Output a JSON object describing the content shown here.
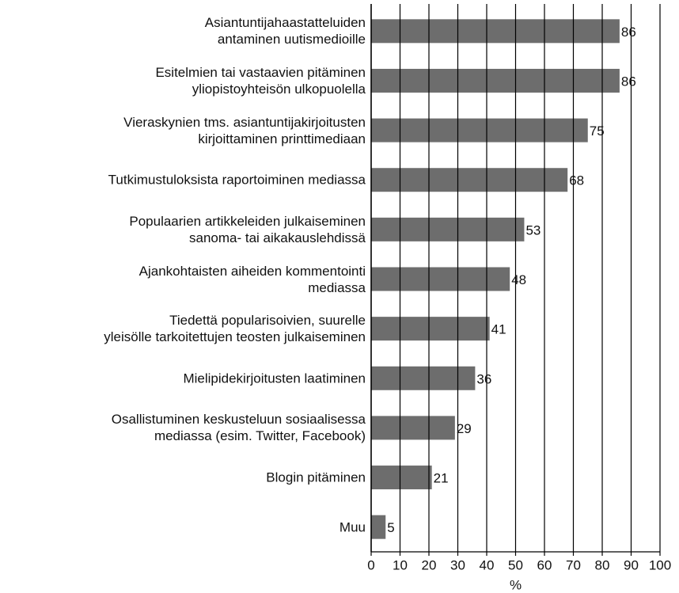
{
  "chart_data": {
    "type": "bar",
    "orientation": "horizontal",
    "categories": [
      "Asiantuntijahaastatteluiden\nantaminen uutismedioille",
      "Esitelmien tai vastaavien pitäminen\nyliopistoyhteisön ulkopuolella",
      "Vieraskynien tms. asiantuntijakirjoitusten\nkirjoittaminen printtimediaan",
      "Tutkimustuloksista raportoiminen mediassa",
      "Populaarien artikkeleiden julkaiseminen\nsanoma- tai aikakauslehdissä",
      "Ajankohtaisten aiheiden kommentointi\nmediassa",
      "Tiedettä popularisoivien, suurelle\nyleisölle tarkoitettujen teosten julkaiseminen",
      "Mielipidekirjoitusten laatiminen",
      "Osallistuminen keskusteluun sosiaalisessa\nmediassa (esim. Twitter, Facebook)",
      "Blogin pitäminen",
      "Muu"
    ],
    "values": [
      86,
      86,
      75,
      68,
      53,
      48,
      41,
      36,
      29,
      21,
      5
    ],
    "color": "#6d6d6d",
    "xlabel": "%",
    "xlim": [
      0,
      100
    ],
    "xticks": [
      0,
      10,
      20,
      30,
      40,
      50,
      60,
      70,
      80,
      90,
      100
    ],
    "grid": true
  }
}
